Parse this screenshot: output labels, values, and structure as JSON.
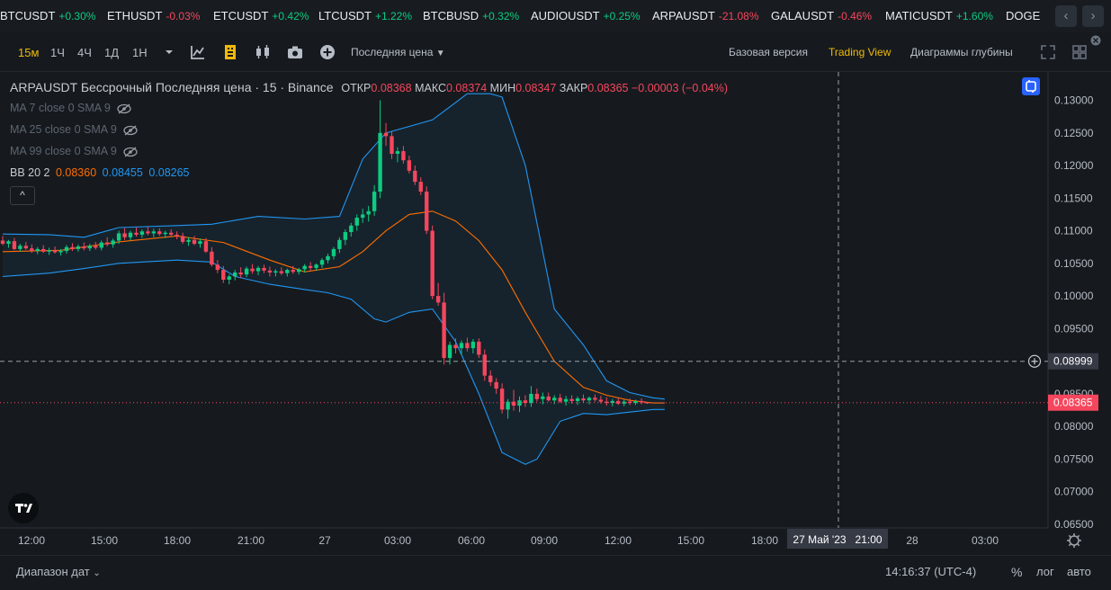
{
  "ticker": [
    {
      "symbol": "BTCUSDT",
      "change": "+0.30%",
      "dir": "up"
    },
    {
      "symbol": "ETHUSDT",
      "change": "-0.03%",
      "dir": "down"
    },
    {
      "symbol": "ETCUSDT",
      "change": "+0.42%",
      "dir": "up"
    },
    {
      "symbol": "LTCUSDT",
      "change": "+1.22%",
      "dir": "up"
    },
    {
      "symbol": "BTCBUSD",
      "change": "+0.32%",
      "dir": "up"
    },
    {
      "symbol": "AUDIOUSDT",
      "change": "+0.25%",
      "dir": "up"
    },
    {
      "symbol": "ARPAUSDT",
      "change": "-21.08%",
      "dir": "down"
    },
    {
      "symbol": "GALAUSDT",
      "change": "-0.46%",
      "dir": "down"
    },
    {
      "symbol": "MATICUSDT",
      "change": "+1.60%",
      "dir": "up"
    },
    {
      "symbol": "DOGE",
      "change": "",
      "dir": "up"
    }
  ],
  "toolbar": {
    "timeframes": [
      "15м",
      "1Ч",
      "4Ч",
      "1Д",
      "1Н"
    ],
    "active_timeframe": "15м",
    "price_type": "Последняя цена",
    "views": [
      "Базовая версия",
      "Trading View",
      "Диаграммы глубины"
    ],
    "active_view": "Trading View",
    "icons": [
      "chevron-down-icon",
      "indicators-icon",
      "chart-type-icon",
      "candles-icon",
      "camera-icon",
      "plus-icon"
    ]
  },
  "legend": {
    "symbol_line": "ARPAUSDT Бессрочный Последняя цена · 15 · Binance",
    "open_label": "ОТКР",
    "open": "0.08368",
    "high_label": "МАКС",
    "high": "0.08374",
    "low_label": "МИН",
    "low": "0.08347",
    "close_label": "ЗАКР",
    "close": "0.08365",
    "change": "−0.00003 (−0.04%)",
    "ma": [
      "MA 7 close 0 SMA 9",
      "MA 25 close 0 SMA 9",
      "MA 99 close 0 SMA 9"
    ],
    "bb_label": "BB 20 2",
    "bb_basis": "0.08360",
    "bb_upper": "0.08455",
    "bb_lower": "0.08265",
    "collapse": "^"
  },
  "colors": {
    "up": "#0ecb81",
    "down": "#f6465d",
    "accent": "#f0b90b",
    "bb_band": "#2196f3",
    "bb_basis": "#ff6d00"
  },
  "chart_data": {
    "type": "candlestick",
    "y_ticks": [
      "0.13000",
      "0.12500",
      "0.12000",
      "0.11500",
      "0.11000",
      "0.10500",
      "0.10000",
      "0.09500",
      "0.09000",
      "0.08500",
      "0.08000",
      "0.07500",
      "0.07000",
      "0.06500"
    ],
    "ylim": [
      0.065,
      0.131
    ],
    "x_ticks": [
      "12:00",
      "15:00",
      "18:00",
      "21:00",
      "27",
      "03:00",
      "06:00",
      "09:00",
      "12:00",
      "15:00",
      "18:00",
      "21:00",
      "28",
      "03:00"
    ],
    "crosshair_price": "0.08999",
    "crosshair_time": "27 Май '23   21:00",
    "last_price": "0.08365",
    "candles": [
      [
        0.1085,
        0.1092,
        0.1078,
        0.108
      ],
      [
        0.108,
        0.1086,
        0.1074,
        0.1084
      ],
      [
        0.1084,
        0.1089,
        0.107,
        0.1072
      ],
      [
        0.1072,
        0.108,
        0.1068,
        0.1077
      ],
      [
        0.1077,
        0.1083,
        0.1071,
        0.1073
      ],
      [
        0.1073,
        0.1079,
        0.1066,
        0.1069
      ],
      [
        0.1069,
        0.1075,
        0.1064,
        0.1072
      ],
      [
        0.1072,
        0.1078,
        0.1066,
        0.1068
      ],
      [
        0.1068,
        0.1074,
        0.1063,
        0.107
      ],
      [
        0.107,
        0.1076,
        0.1065,
        0.1067
      ],
      [
        0.1067,
        0.1072,
        0.1062,
        0.1069
      ],
      [
        0.1069,
        0.1078,
        0.1065,
        0.1075
      ],
      [
        0.1075,
        0.1081,
        0.1069,
        0.1072
      ],
      [
        0.1072,
        0.1079,
        0.1068,
        0.1076
      ],
      [
        0.1076,
        0.1082,
        0.107,
        0.1073
      ],
      [
        0.1073,
        0.108,
        0.1069,
        0.1077
      ],
      [
        0.1077,
        0.1083,
        0.1071,
        0.1074
      ],
      [
        0.1074,
        0.1085,
        0.107,
        0.1082
      ],
      [
        0.1082,
        0.109,
        0.1076,
        0.1079
      ],
      [
        0.1079,
        0.1088,
        0.1074,
        0.1085
      ],
      [
        0.1085,
        0.11,
        0.108,
        0.1096
      ],
      [
        0.1096,
        0.1104,
        0.1086,
        0.109
      ],
      [
        0.109,
        0.11,
        0.1085,
        0.1097
      ],
      [
        0.1097,
        0.1105,
        0.1091,
        0.1094
      ],
      [
        0.1094,
        0.1102,
        0.1089,
        0.1099
      ],
      [
        0.1099,
        0.1106,
        0.1093,
        0.1096
      ],
      [
        0.1096,
        0.1103,
        0.109,
        0.1099
      ],
      [
        0.1099,
        0.1104,
        0.1092,
        0.1095
      ],
      [
        0.1095,
        0.11,
        0.1089,
        0.1097
      ],
      [
        0.1097,
        0.1102,
        0.1091,
        0.1094
      ],
      [
        0.1094,
        0.1099,
        0.1087,
        0.1092
      ],
      [
        0.1092,
        0.1097,
        0.108,
        0.1083
      ],
      [
        0.1083,
        0.109,
        0.1077,
        0.1086
      ],
      [
        0.1086,
        0.1092,
        0.1078,
        0.108
      ],
      [
        0.108,
        0.1088,
        0.1074,
        0.1084
      ],
      [
        0.1084,
        0.1089,
        0.1066,
        0.1068
      ],
      [
        0.1068,
        0.1075,
        0.1045,
        0.1048
      ],
      [
        0.1048,
        0.1055,
        0.1035,
        0.104
      ],
      [
        0.104,
        0.1046,
        0.102,
        0.1025
      ],
      [
        0.1025,
        0.1033,
        0.1018,
        0.103
      ],
      [
        0.103,
        0.104,
        0.1024,
        0.1036
      ],
      [
        0.1036,
        0.1044,
        0.1028,
        0.1033
      ],
      [
        0.1033,
        0.1045,
        0.1029,
        0.1042
      ],
      [
        0.1042,
        0.1049,
        0.1034,
        0.1038
      ],
      [
        0.1038,
        0.1046,
        0.1032,
        0.1043
      ],
      [
        0.1043,
        0.1048,
        0.1035,
        0.1039
      ],
      [
        0.1039,
        0.1045,
        0.103,
        0.1036
      ],
      [
        0.1036,
        0.1041,
        0.103,
        0.1038
      ],
      [
        0.1038,
        0.1044,
        0.1032,
        0.1035
      ],
      [
        0.1035,
        0.1042,
        0.103,
        0.104
      ],
      [
        0.104,
        0.1046,
        0.1034,
        0.1037
      ],
      [
        0.1037,
        0.1043,
        0.1033,
        0.1041
      ],
      [
        0.1041,
        0.1049,
        0.1036,
        0.1046
      ],
      [
        0.1046,
        0.1052,
        0.1039,
        0.1043
      ],
      [
        0.1043,
        0.105,
        0.1039,
        0.1048
      ],
      [
        0.1048,
        0.1058,
        0.1043,
        0.1055
      ],
      [
        0.1055,
        0.1065,
        0.105,
        0.1061
      ],
      [
        0.1061,
        0.1075,
        0.1056,
        0.1072
      ],
      [
        0.1072,
        0.109,
        0.1066,
        0.1086
      ],
      [
        0.1086,
        0.1102,
        0.1078,
        0.1098
      ],
      [
        0.1098,
        0.1112,
        0.1091,
        0.1108
      ],
      [
        0.1108,
        0.1125,
        0.11,
        0.112
      ],
      [
        0.112,
        0.1134,
        0.1112,
        0.1125
      ],
      [
        0.1125,
        0.1138,
        0.1114,
        0.113
      ],
      [
        0.113,
        0.117,
        0.1123,
        0.116
      ],
      [
        0.116,
        0.13,
        0.115,
        0.125
      ],
      [
        0.125,
        0.1265,
        0.123,
        0.1245
      ],
      [
        0.1245,
        0.1252,
        0.121,
        0.1218
      ],
      [
        0.1218,
        0.1228,
        0.1205,
        0.1222
      ],
      [
        0.1222,
        0.123,
        0.1203,
        0.1208
      ],
      [
        0.1208,
        0.1215,
        0.1188,
        0.1192
      ],
      [
        0.1192,
        0.12,
        0.117,
        0.1175
      ],
      [
        0.1175,
        0.1182,
        0.1155,
        0.116
      ],
      [
        0.116,
        0.1168,
        0.1095,
        0.11
      ],
      [
        0.11,
        0.1108,
        0.0995,
        0.1
      ],
      [
        0.1,
        0.102,
        0.0985,
        0.099
      ],
      [
        0.099,
        0.1005,
        0.0895,
        0.0905
      ],
      [
        0.0905,
        0.093,
        0.0895,
        0.0925
      ],
      [
        0.0925,
        0.0935,
        0.0912,
        0.092
      ],
      [
        0.092,
        0.0932,
        0.091,
        0.0928
      ],
      [
        0.0928,
        0.0936,
        0.0915,
        0.092
      ],
      [
        0.092,
        0.0934,
        0.0912,
        0.093
      ],
      [
        0.093,
        0.0935,
        0.0905,
        0.091
      ],
      [
        0.091,
        0.0918,
        0.087,
        0.0878
      ],
      [
        0.0878,
        0.0886,
        0.0862,
        0.0868
      ],
      [
        0.0868,
        0.0874,
        0.085,
        0.0858
      ],
      [
        0.0858,
        0.0866,
        0.082,
        0.0826
      ],
      [
        0.0826,
        0.0842,
        0.0812,
        0.0838
      ],
      [
        0.0838,
        0.0856,
        0.0824,
        0.0832
      ],
      [
        0.0832,
        0.0846,
        0.0822,
        0.084
      ],
      [
        0.084,
        0.0848,
        0.083,
        0.0836
      ],
      [
        0.0836,
        0.0862,
        0.083,
        0.085
      ],
      [
        0.085,
        0.0858,
        0.0838,
        0.0842
      ],
      [
        0.0842,
        0.0852,
        0.0834,
        0.0846
      ],
      [
        0.0846,
        0.0852,
        0.0838,
        0.084
      ],
      [
        0.084,
        0.0848,
        0.0834,
        0.0844
      ],
      [
        0.0844,
        0.085,
        0.0836,
        0.0838
      ],
      [
        0.0838,
        0.0847,
        0.0832,
        0.0842
      ],
      [
        0.0842,
        0.0848,
        0.0835,
        0.0839
      ],
      [
        0.0839,
        0.0846,
        0.0833,
        0.0843
      ],
      [
        0.0843,
        0.0849,
        0.0837,
        0.084
      ],
      [
        0.084,
        0.0846,
        0.0834,
        0.0844
      ],
      [
        0.0844,
        0.0849,
        0.0838,
        0.0841
      ],
      [
        0.0841,
        0.0847,
        0.0835,
        0.0838
      ],
      [
        0.0838,
        0.0845,
        0.0832,
        0.0836
      ],
      [
        0.0836,
        0.0842,
        0.0831,
        0.0839
      ],
      [
        0.0839,
        0.0844,
        0.0833,
        0.0835
      ],
      [
        0.0835,
        0.0841,
        0.0831,
        0.0838
      ],
      [
        0.0838,
        0.0843,
        0.0833,
        0.0836
      ],
      [
        0.0836,
        0.0841,
        0.0833,
        0.0839
      ],
      [
        0.0839,
        0.0843,
        0.0834,
        0.08368
      ],
      [
        0.08368,
        0.08374,
        0.08347,
        0.08365
      ]
    ],
    "bb_upper_points": [
      [
        0,
        0.1095
      ],
      [
        8,
        0.1094
      ],
      [
        14,
        0.109
      ],
      [
        20,
        0.1105
      ],
      [
        30,
        0.1108
      ],
      [
        36,
        0.111
      ],
      [
        44,
        0.1122
      ],
      [
        52,
        0.1118
      ],
      [
        58,
        0.1122
      ],
      [
        62,
        0.121
      ],
      [
        66,
        0.125
      ],
      [
        74,
        0.127
      ],
      [
        80,
        0.131
      ],
      [
        84,
        0.131
      ],
      [
        86,
        0.1305
      ],
      [
        90,
        0.12
      ],
      [
        95,
        0.098
      ],
      [
        100,
        0.0925
      ],
      [
        104,
        0.087
      ],
      [
        108,
        0.0852
      ],
      [
        112,
        0.0844
      ],
      [
        114,
        0.0842
      ]
    ],
    "bb_lower_points": [
      [
        0,
        0.103
      ],
      [
        8,
        0.1035
      ],
      [
        14,
        0.1042
      ],
      [
        20,
        0.105
      ],
      [
        30,
        0.1055
      ],
      [
        36,
        0.1052
      ],
      [
        40,
        0.103
      ],
      [
        46,
        0.1018
      ],
      [
        52,
        0.101
      ],
      [
        56,
        0.1005
      ],
      [
        60,
        0.0995
      ],
      [
        64,
        0.0965
      ],
      [
        66,
        0.096
      ],
      [
        70,
        0.0975
      ],
      [
        74,
        0.098
      ],
      [
        78,
        0.093
      ],
      [
        82,
        0.085
      ],
      [
        86,
        0.076
      ],
      [
        90,
        0.0742
      ],
      [
        92,
        0.075
      ],
      [
        96,
        0.0808
      ],
      [
        100,
        0.082
      ],
      [
        104,
        0.0818
      ],
      [
        108,
        0.0822
      ],
      [
        112,
        0.0826
      ],
      [
        114,
        0.0826
      ]
    ],
    "bb_basis_points": [
      [
        0,
        0.1068
      ],
      [
        10,
        0.107
      ],
      [
        20,
        0.1083
      ],
      [
        30,
        0.1092
      ],
      [
        38,
        0.1082
      ],
      [
        46,
        0.1055
      ],
      [
        52,
        0.1037
      ],
      [
        58,
        0.1045
      ],
      [
        62,
        0.1068
      ],
      [
        66,
        0.11
      ],
      [
        70,
        0.1125
      ],
      [
        74,
        0.113
      ],
      [
        78,
        0.1115
      ],
      [
        82,
        0.1085
      ],
      [
        86,
        0.104
      ],
      [
        90,
        0.0975
      ],
      [
        95,
        0.09
      ],
      [
        100,
        0.086
      ],
      [
        104,
        0.0848
      ],
      [
        108,
        0.084
      ],
      [
        112,
        0.0836
      ],
      [
        114,
        0.0836
      ]
    ]
  },
  "footer": {
    "range": "Диапазон дат",
    "time": "14:16:37 (UTC-4)",
    "pct": "%",
    "log": "лог",
    "auto": "авто"
  }
}
